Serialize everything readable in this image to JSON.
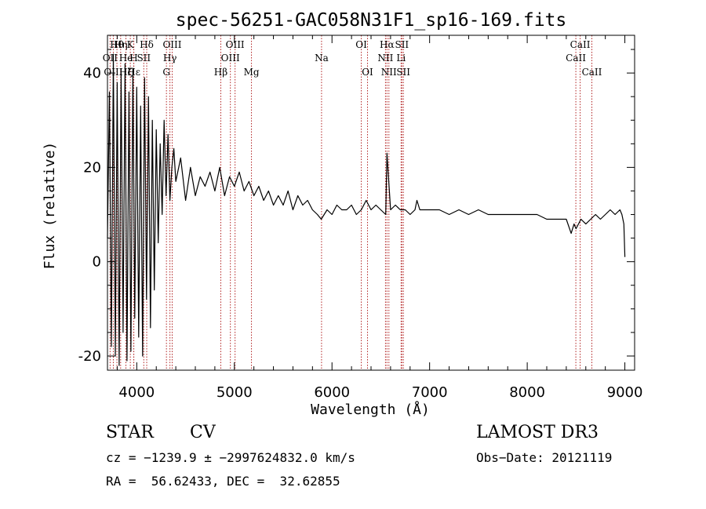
{
  "colors": {
    "line_marker": "#b22222",
    "spectrum": "#000000"
  },
  "chart_data": {
    "type": "line",
    "title": "spec-56251-GAC058N31F1_sp16-169.fits",
    "xlabel": "Wavelength (Å)",
    "ylabel": "Flux (relative)",
    "xlim": [
      3700,
      9100
    ],
    "ylim": [
      -23,
      48
    ],
    "xticks": [
      4000,
      5000,
      6000,
      7000,
      8000,
      9000
    ],
    "yticks": [
      -20,
      0,
      20,
      40
    ],
    "xtick_labels": [
      "4000",
      "5000",
      "6000",
      "7000",
      "8000",
      "9000"
    ],
    "ytick_labels": [
      "-20",
      "0",
      "20",
      "40"
    ],
    "series": [
      {
        "name": "flux",
        "x": [
          3700,
          3720,
          3740,
          3760,
          3780,
          3800,
          3820,
          3840,
          3860,
          3880,
          3900,
          3920,
          3940,
          3960,
          3980,
          4000,
          4020,
          4040,
          4060,
          4080,
          4100,
          4120,
          4140,
          4160,
          4180,
          4200,
          4220,
          4240,
          4260,
          4280,
          4300,
          4320,
          4340,
          4360,
          4380,
          4400,
          4450,
          4500,
          4550,
          4600,
          4650,
          4700,
          4750,
          4800,
          4850,
          4900,
          4950,
          5000,
          5050,
          5100,
          5150,
          5200,
          5250,
          5300,
          5350,
          5400,
          5450,
          5500,
          5550,
          5600,
          5650,
          5700,
          5750,
          5800,
          5850,
          5890,
          5950,
          6000,
          6050,
          6100,
          6150,
          6200,
          6250,
          6300,
          6350,
          6400,
          6450,
          6500,
          6550,
          6563,
          6600,
          6650,
          6700,
          6750,
          6800,
          6850,
          6870,
          6900,
          7000,
          7100,
          7200,
          7300,
          7400,
          7500,
          7600,
          7700,
          7800,
          7900,
          8000,
          8100,
          8200,
          8300,
          8400,
          8450,
          8480,
          8500,
          8550,
          8600,
          8650,
          8700,
          8750,
          8800,
          8850,
          8900,
          8950,
          8970,
          8990,
          9000
        ],
        "values": [
          5,
          36,
          -18,
          44,
          -20,
          38,
          -22,
          40,
          -15,
          42,
          -21,
          36,
          -19,
          41,
          -12,
          37,
          -16,
          33,
          -20,
          39,
          -8,
          35,
          -14,
          30,
          -6,
          28,
          4,
          25,
          10,
          30,
          14,
          27,
          13,
          20,
          24,
          17,
          22,
          13,
          20,
          14,
          18,
          16,
          19,
          15,
          20,
          14,
          18,
          16,
          19,
          15,
          17,
          14,
          16,
          13,
          15,
          12,
          14,
          12,
          15,
          11,
          14,
          12,
          13,
          11,
          10,
          9,
          11,
          10,
          12,
          11,
          11,
          12,
          10,
          11,
          13,
          11,
          12,
          11,
          10,
          23,
          11,
          12,
          11,
          11,
          10,
          11,
          13,
          11,
          11,
          11,
          10,
          11,
          10,
          11,
          10,
          10,
          10,
          10,
          10,
          10,
          9,
          9,
          9,
          6,
          8,
          7,
          9,
          8,
          9,
          10,
          9,
          10,
          11,
          10,
          11,
          10,
          8,
          1
        ]
      }
    ],
    "line_markers": [
      {
        "label": "Hθ",
        "wavelength": 3797,
        "row": 0
      },
      {
        "label": "OII",
        "wavelength": 3727,
        "row": 1
      },
      {
        "label": "OIII",
        "wavelength": 3760,
        "row": 2
      },
      {
        "label": "Hη",
        "wavelength": 3835,
        "row": 0
      },
      {
        "label": "He",
        "wavelength": 3889,
        "row": 1
      },
      {
        "label": "Hζ",
        "wavelength": 3889,
        "row": 2
      },
      {
        "label": "K",
        "wavelength": 3934,
        "row": 0
      },
      {
        "label": "H",
        "wavelength": 3969,
        "row": 1
      },
      {
        "label": "Hε",
        "wavelength": 3970,
        "row": 2
      },
      {
        "label": "Hδ",
        "wavelength": 4102,
        "row": 0
      },
      {
        "label": "SII",
        "wavelength": 4072,
        "row": 1
      },
      {
        "label": "OIII",
        "wavelength": 4363,
        "row": 0
      },
      {
        "label": "Hγ",
        "wavelength": 4340,
        "row": 1
      },
      {
        "label": "G",
        "wavelength": 4304,
        "row": 2
      },
      {
        "label": "Hβ",
        "wavelength": 4861,
        "row": 2
      },
      {
        "label": "OIII",
        "wavelength": 5007,
        "row": 0
      },
      {
        "label": "OIII",
        "wavelength": 4959,
        "row": 1
      },
      {
        "label": "Mg",
        "wavelength": 5175,
        "row": 2
      },
      {
        "label": "Na",
        "wavelength": 5893,
        "row": 1
      },
      {
        "label": "OI",
        "wavelength": 6300,
        "row": 0
      },
      {
        "label": "OI",
        "wavelength": 6364,
        "row": 2
      },
      {
        "label": "Hα",
        "wavelength": 6563,
        "row": 0
      },
      {
        "label": "NII",
        "wavelength": 6548,
        "row": 1
      },
      {
        "label": "NII",
        "wavelength": 6583,
        "row": 2
      },
      {
        "label": "SII",
        "wavelength": 6716,
        "row": 0
      },
      {
        "label": "Li",
        "wavelength": 6708,
        "row": 1
      },
      {
        "label": "SII",
        "wavelength": 6731,
        "row": 2
      },
      {
        "label": "CaII",
        "wavelength": 8542,
        "row": 0
      },
      {
        "label": "CaII",
        "wavelength": 8498,
        "row": 1
      },
      {
        "label": "CaII",
        "wavelength": 8662,
        "row": 2
      }
    ]
  },
  "info": {
    "object_class": "STAR",
    "subclass": "CV",
    "survey": "LAMOST DR3",
    "redshift_line": "cz = −1239.9 ± −2997624832.0 km/s",
    "obs_date_line": "Obs−Date: 20121119",
    "coords_line": "RA =  56.62433, DEC =  32.62855"
  }
}
